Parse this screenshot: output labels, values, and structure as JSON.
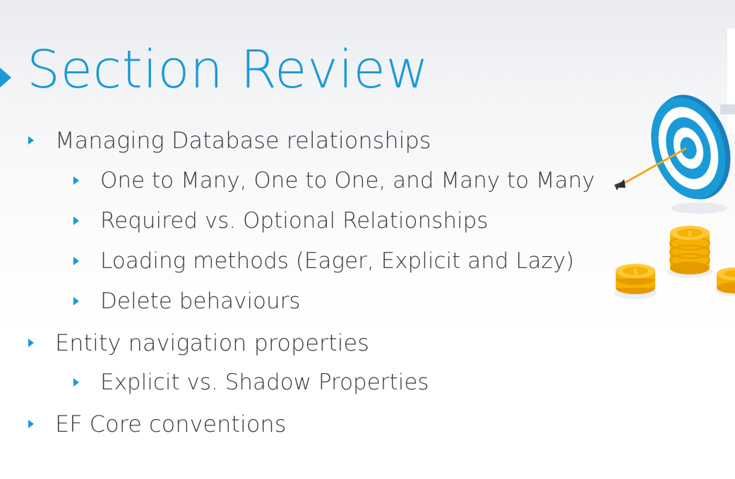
{
  "slide": {
    "title": "Section Review",
    "accent_color": "#1a9ad6",
    "text_color": "#3a3d42",
    "bullets": [
      {
        "level": 1,
        "text": "Managing Database relationships"
      },
      {
        "level": 2,
        "text": "One to Many, One to One, and Many to Many"
      },
      {
        "level": 2,
        "text": "Required vs. Optional Relationships"
      },
      {
        "level": 2,
        "text": "Loading methods (Eager, Explicit and Lazy)"
      },
      {
        "level": 2,
        "text": "Delete behaviours"
      },
      {
        "level": 1,
        "text": "Entity navigation properties"
      },
      {
        "level": 2,
        "text": "Explicit vs. Shadow Properties"
      },
      {
        "level": 1,
        "text": "EF Core conventions"
      }
    ],
    "illustration": {
      "icons": [
        "target-icon",
        "arrow-icon",
        "coin-stack-icon"
      ],
      "coin_symbol": "$"
    }
  }
}
